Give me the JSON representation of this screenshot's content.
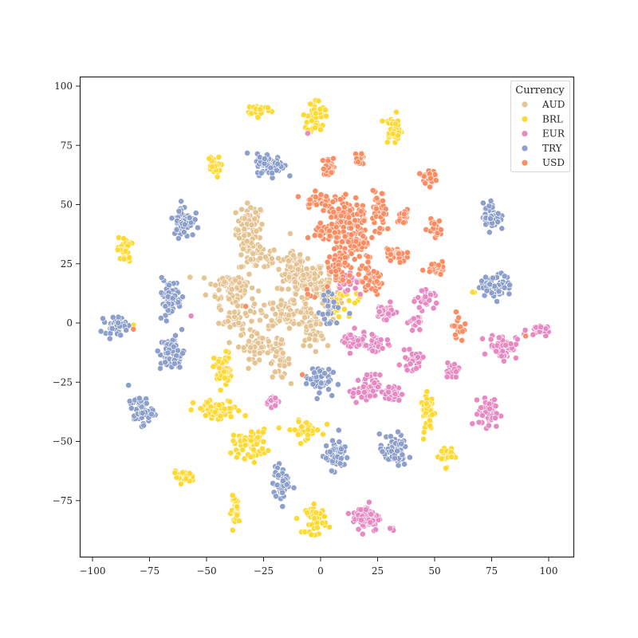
{
  "chart_data": {
    "type": "scatter",
    "title": "",
    "xlabel": "",
    "ylabel": "",
    "xlim": [
      -105,
      112
    ],
    "ylim": [
      -99,
      104
    ],
    "xticks": [
      -100,
      -75,
      -50,
      -25,
      0,
      25,
      50,
      75,
      100
    ],
    "yticks": [
      -75,
      -50,
      -25,
      0,
      25,
      50,
      75,
      100
    ],
    "xtick_labels": [
      "−100",
      "−75",
      "−50",
      "−25",
      "0",
      "25",
      "50",
      "75",
      "100"
    ],
    "ytick_labels": [
      "−75",
      "−50",
      "−25",
      "0",
      "25",
      "50",
      "75",
      "100"
    ],
    "grid": false,
    "legend": {
      "title": "Currency",
      "position": "upper right",
      "entries": [
        {
          "label": "AUD",
          "color": "#e5c494"
        },
        {
          "label": "BRL",
          "color": "#ffd92f"
        },
        {
          "label": "EUR",
          "color": "#e78ac3"
        },
        {
          "label": "TRY",
          "color": "#8da0cb"
        },
        {
          "label": "USD",
          "color": "#fc8d62"
        }
      ]
    },
    "series": [
      {
        "name": "AUD",
        "color": "#e5c494",
        "clusters": [
          {
            "cx": -31,
            "cy": 40,
            "sx": 4,
            "sy": 7,
            "n": 70
          },
          {
            "cx": -27,
            "cy": 28,
            "sx": 6,
            "sy": 4,
            "n": 50
          },
          {
            "cx": -39,
            "cy": 15,
            "sx": 7,
            "sy": 5,
            "n": 80
          },
          {
            "cx": -37,
            "cy": 2,
            "sx": 5,
            "sy": 4,
            "n": 40
          },
          {
            "cx": -27,
            "cy": -9,
            "sx": 6,
            "sy": 4,
            "n": 50
          },
          {
            "cx": -18,
            "cy": -16,
            "sx": 3,
            "sy": 5,
            "n": 35
          },
          {
            "cx": -12,
            "cy": 23,
            "sx": 4,
            "sy": 6,
            "n": 55
          },
          {
            "cx": -7,
            "cy": 18,
            "sx": 6,
            "sy": 5,
            "n": 80
          },
          {
            "cx": -14,
            "cy": 5,
            "sx": 7,
            "sy": 4,
            "n": 70
          },
          {
            "cx": -4,
            "cy": -2,
            "sx": 4,
            "sy": 6,
            "n": 50
          },
          {
            "cx": 2,
            "cy": 12,
            "sx": 5,
            "sy": 5,
            "n": 50
          }
        ]
      },
      {
        "name": "BRL",
        "color": "#ffd92f",
        "clusters": [
          {
            "cx": -27,
            "cy": 90,
            "sx": 3.5,
            "sy": 1.5,
            "n": 35
          },
          {
            "cx": -2,
            "cy": 87,
            "sx": 2.5,
            "sy": 5,
            "n": 50
          },
          {
            "cx": 32,
            "cy": 82,
            "sx": 2.5,
            "sy": 4,
            "n": 40
          },
          {
            "cx": -47,
            "cy": 66,
            "sx": 2,
            "sy": 3,
            "n": 25
          },
          {
            "cx": -86,
            "cy": 31,
            "sx": 2,
            "sy": 3.5,
            "n": 30
          },
          {
            "cx": -43,
            "cy": -20,
            "sx": 2.5,
            "sy": 5,
            "n": 45
          },
          {
            "cx": -45,
            "cy": -37,
            "sx": 7,
            "sy": 3,
            "n": 55
          },
          {
            "cx": -31,
            "cy": -51,
            "sx": 5,
            "sy": 4,
            "n": 60
          },
          {
            "cx": -7,
            "cy": -45,
            "sx": 5,
            "sy": 2.5,
            "n": 40
          },
          {
            "cx": -60,
            "cy": -65,
            "sx": 3,
            "sy": 1.5,
            "n": 25
          },
          {
            "cx": -37,
            "cy": -79,
            "sx": 1.5,
            "sy": 4,
            "n": 28
          },
          {
            "cx": -2,
            "cy": -83,
            "sx": 3,
            "sy": 4,
            "n": 45
          },
          {
            "cx": 47,
            "cy": -38,
            "sx": 2,
            "sy": 5,
            "n": 40
          },
          {
            "cx": 55,
            "cy": -56,
            "sx": 2,
            "sy": 3,
            "n": 25
          },
          {
            "cx": 8,
            "cy": 8,
            "sx": 3,
            "sy": 5,
            "n": 18
          },
          {
            "cx": 67,
            "cy": 13,
            "sx": 0.5,
            "sy": 0.5,
            "n": 2
          },
          {
            "cx": -82,
            "cy": -1,
            "sx": 0.3,
            "sy": 0.3,
            "n": 1
          },
          {
            "cx": 17,
            "cy": 9,
            "sx": 1.5,
            "sy": 2,
            "n": 4
          }
        ]
      },
      {
        "name": "EUR",
        "color": "#e78ac3",
        "clusters": [
          {
            "cx": 13,
            "cy": 17,
            "sx": 4,
            "sy": 4,
            "n": 22
          },
          {
            "cx": 28,
            "cy": 5,
            "sx": 3,
            "sy": 2,
            "n": 30
          },
          {
            "cx": 47,
            "cy": 10,
            "sx": 3,
            "sy": 2,
            "n": 30
          },
          {
            "cx": 42,
            "cy": 0,
            "sx": 2,
            "sy": 3,
            "n": 25
          },
          {
            "cx": 14,
            "cy": -8,
            "sx": 4,
            "sy": 3,
            "n": 35
          },
          {
            "cx": 25,
            "cy": -9,
            "sx": 3,
            "sy": 3,
            "n": 30
          },
          {
            "cx": 40,
            "cy": -16,
            "sx": 3,
            "sy": 2.5,
            "n": 25
          },
          {
            "cx": 58,
            "cy": -20,
            "sx": 2.5,
            "sy": 2.5,
            "n": 22
          },
          {
            "cx": 80,
            "cy": -10,
            "sx": 4,
            "sy": 3.5,
            "n": 60
          },
          {
            "cx": 95,
            "cy": -3,
            "sx": 3,
            "sy": 1.5,
            "n": 25
          },
          {
            "cx": 20,
            "cy": -28,
            "sx": 4,
            "sy": 4,
            "n": 60
          },
          {
            "cx": 31,
            "cy": -30,
            "sx": 3,
            "sy": 2.5,
            "n": 30
          },
          {
            "cx": 74,
            "cy": -38,
            "sx": 3,
            "sy": 4,
            "n": 55
          },
          {
            "cx": -21,
            "cy": -33,
            "sx": 2,
            "sy": 1.5,
            "n": 18
          },
          {
            "cx": 20,
            "cy": -82,
            "sx": 4,
            "sy": 4,
            "n": 70
          },
          {
            "cx": 31,
            "cy": -87,
            "sx": 1.5,
            "sy": 0.6,
            "n": 4
          },
          {
            "cx": -6,
            "cy": 80,
            "sx": 0.3,
            "sy": 0.3,
            "n": 1
          },
          {
            "cx": -57,
            "cy": 3,
            "sx": 0.3,
            "sy": 0.3,
            "n": 1
          }
        ]
      },
      {
        "name": "TRY",
        "color": "#8da0cb",
        "clusters": [
          {
            "cx": -22,
            "cy": 67,
            "sx": 4,
            "sy": 3,
            "n": 75
          },
          {
            "cx": -60,
            "cy": 43,
            "sx": 3,
            "sy": 4.5,
            "n": 65
          },
          {
            "cx": -66,
            "cy": 11,
            "sx": 3.5,
            "sy": 5,
            "n": 65
          },
          {
            "cx": -90,
            "cy": -1,
            "sx": 3,
            "sy": 2.5,
            "n": 45
          },
          {
            "cx": -65,
            "cy": -13,
            "sx": 3.5,
            "sy": 5,
            "n": 65
          },
          {
            "cx": -79,
            "cy": -37,
            "sx": 3.5,
            "sy": 4,
            "n": 60
          },
          {
            "cx": -17,
            "cy": -68,
            "sx": 2.5,
            "sy": 5,
            "n": 50
          },
          {
            "cx": -1,
            "cy": -23,
            "sx": 3.5,
            "sy": 4,
            "n": 55
          },
          {
            "cx": 7,
            "cy": -56,
            "sx": 3.5,
            "sy": 4,
            "n": 60
          },
          {
            "cx": 32,
            "cy": -54,
            "sx": 4,
            "sy": 4.5,
            "n": 65
          },
          {
            "cx": 75,
            "cy": 45,
            "sx": 2.5,
            "sy": 4,
            "n": 50
          },
          {
            "cx": 77,
            "cy": 16,
            "sx": 4.5,
            "sy": 3,
            "n": 70
          },
          {
            "cx": 5,
            "cy": 5,
            "sx": 4,
            "sy": 5,
            "n": 20
          }
        ]
      },
      {
        "name": "USD",
        "color": "#fc8d62",
        "clusters": [
          {
            "cx": 4,
            "cy": 66,
            "sx": 2,
            "sy": 2.5,
            "n": 25
          },
          {
            "cx": 17,
            "cy": 69,
            "sx": 1.5,
            "sy": 2.5,
            "n": 18
          },
          {
            "cx": 47,
            "cy": 62,
            "sx": 2,
            "sy": 2,
            "n": 25
          },
          {
            "cx": -1,
            "cy": 52,
            "sx": 4,
            "sy": 2,
            "n": 40
          },
          {
            "cx": 12,
            "cy": 45,
            "sx": 6,
            "sy": 6,
            "n": 90
          },
          {
            "cx": 26,
            "cy": 46,
            "sx": 2,
            "sy": 6,
            "n": 35
          },
          {
            "cx": 3,
            "cy": 38,
            "sx": 4,
            "sy": 3,
            "n": 40
          },
          {
            "cx": 16,
            "cy": 33,
            "sx": 5,
            "sy": 5,
            "n": 60
          },
          {
            "cx": 8,
            "cy": 22,
            "sx": 4,
            "sy": 5,
            "n": 45
          },
          {
            "cx": 22,
            "cy": 18,
            "sx": 4,
            "sy": 4,
            "n": 45
          },
          {
            "cx": 33,
            "cy": 29,
            "sx": 3,
            "sy": 2.5,
            "n": 35
          },
          {
            "cx": 36,
            "cy": 45,
            "sx": 2,
            "sy": 2,
            "n": 22
          },
          {
            "cx": 50,
            "cy": 40,
            "sx": 2,
            "sy": 2.5,
            "n": 22
          },
          {
            "cx": 51,
            "cy": 24,
            "sx": 3,
            "sy": 2,
            "n": 30
          },
          {
            "cx": 60,
            "cy": -2,
            "sx": 1.5,
            "sy": 3.5,
            "n": 18
          },
          {
            "cx": -33,
            "cy": 7,
            "sx": 0.3,
            "sy": 0.3,
            "n": 1
          },
          {
            "cx": -82,
            "cy": -3,
            "sx": 0.3,
            "sy": 0.3,
            "n": 1
          },
          {
            "cx": 90,
            "cy": -5,
            "sx": 0.3,
            "sy": 0.3,
            "n": 1
          },
          {
            "cx": -8,
            "cy": -22,
            "sx": 0.3,
            "sy": 0.3,
            "n": 1
          },
          {
            "cx": -6,
            "cy": 12,
            "sx": 2,
            "sy": 1.5,
            "n": 4
          }
        ]
      }
    ]
  }
}
